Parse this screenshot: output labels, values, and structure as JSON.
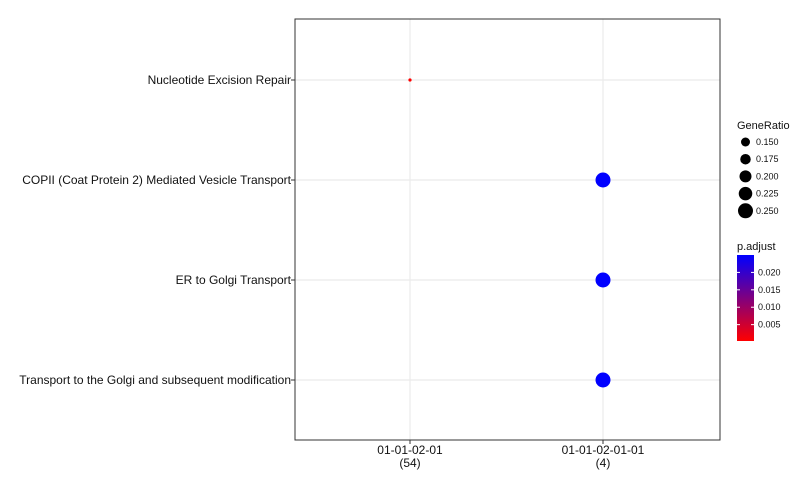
{
  "chart_data": {
    "type": "scatter",
    "title": "",
    "xlabel": "",
    "ylabel": "",
    "x_categories": [
      "01-01-02-01\n(54)",
      "01-01-02-01-01\n(4)"
    ],
    "y_categories": [
      "Nucleotide Excision Repair",
      "COPII (Coat Protein 2) Mediated Vesicle Transport",
      "ER to Golgi Transport",
      "Transport to the Golgi and subsequent modification"
    ],
    "points": [
      {
        "x": "01-01-02-01\n(54)",
        "y": "Nucleotide Excision Repair",
        "GeneRatio": 0.037,
        "p.adjust": 0.0003
      },
      {
        "x": "01-01-02-01-01\n(4)",
        "y": "COPII (Coat Protein 2) Mediated Vesicle Transport",
        "GeneRatio": 0.25,
        "p.adjust": 0.025
      },
      {
        "x": "01-01-02-01-01\n(4)",
        "y": "ER to Golgi Transport",
        "GeneRatio": 0.25,
        "p.adjust": 0.025
      },
      {
        "x": "01-01-02-01-01\n(4)",
        "y": "Transport to the Golgi and subsequent modification",
        "GeneRatio": 0.25,
        "p.adjust": 0.025
      }
    ],
    "size_legend": {
      "title": "GeneRatio",
      "values": [
        0.15,
        0.175,
        0.2,
        0.225,
        0.25
      ],
      "labels": [
        "0.150",
        "0.175",
        "0.200",
        "0.225",
        "0.250"
      ]
    },
    "color_legend": {
      "title": "p.adjust",
      "range": [
        0.0003,
        0.025
      ],
      "breaks": [
        0.02,
        0.015,
        0.01,
        0.005
      ],
      "labels": [
        "0.020",
        "0.015",
        "0.010",
        "0.005"
      ],
      "low_color": "#ff0000",
      "high_color": "#0000ff"
    },
    "grid": true,
    "legend_position": "right"
  }
}
